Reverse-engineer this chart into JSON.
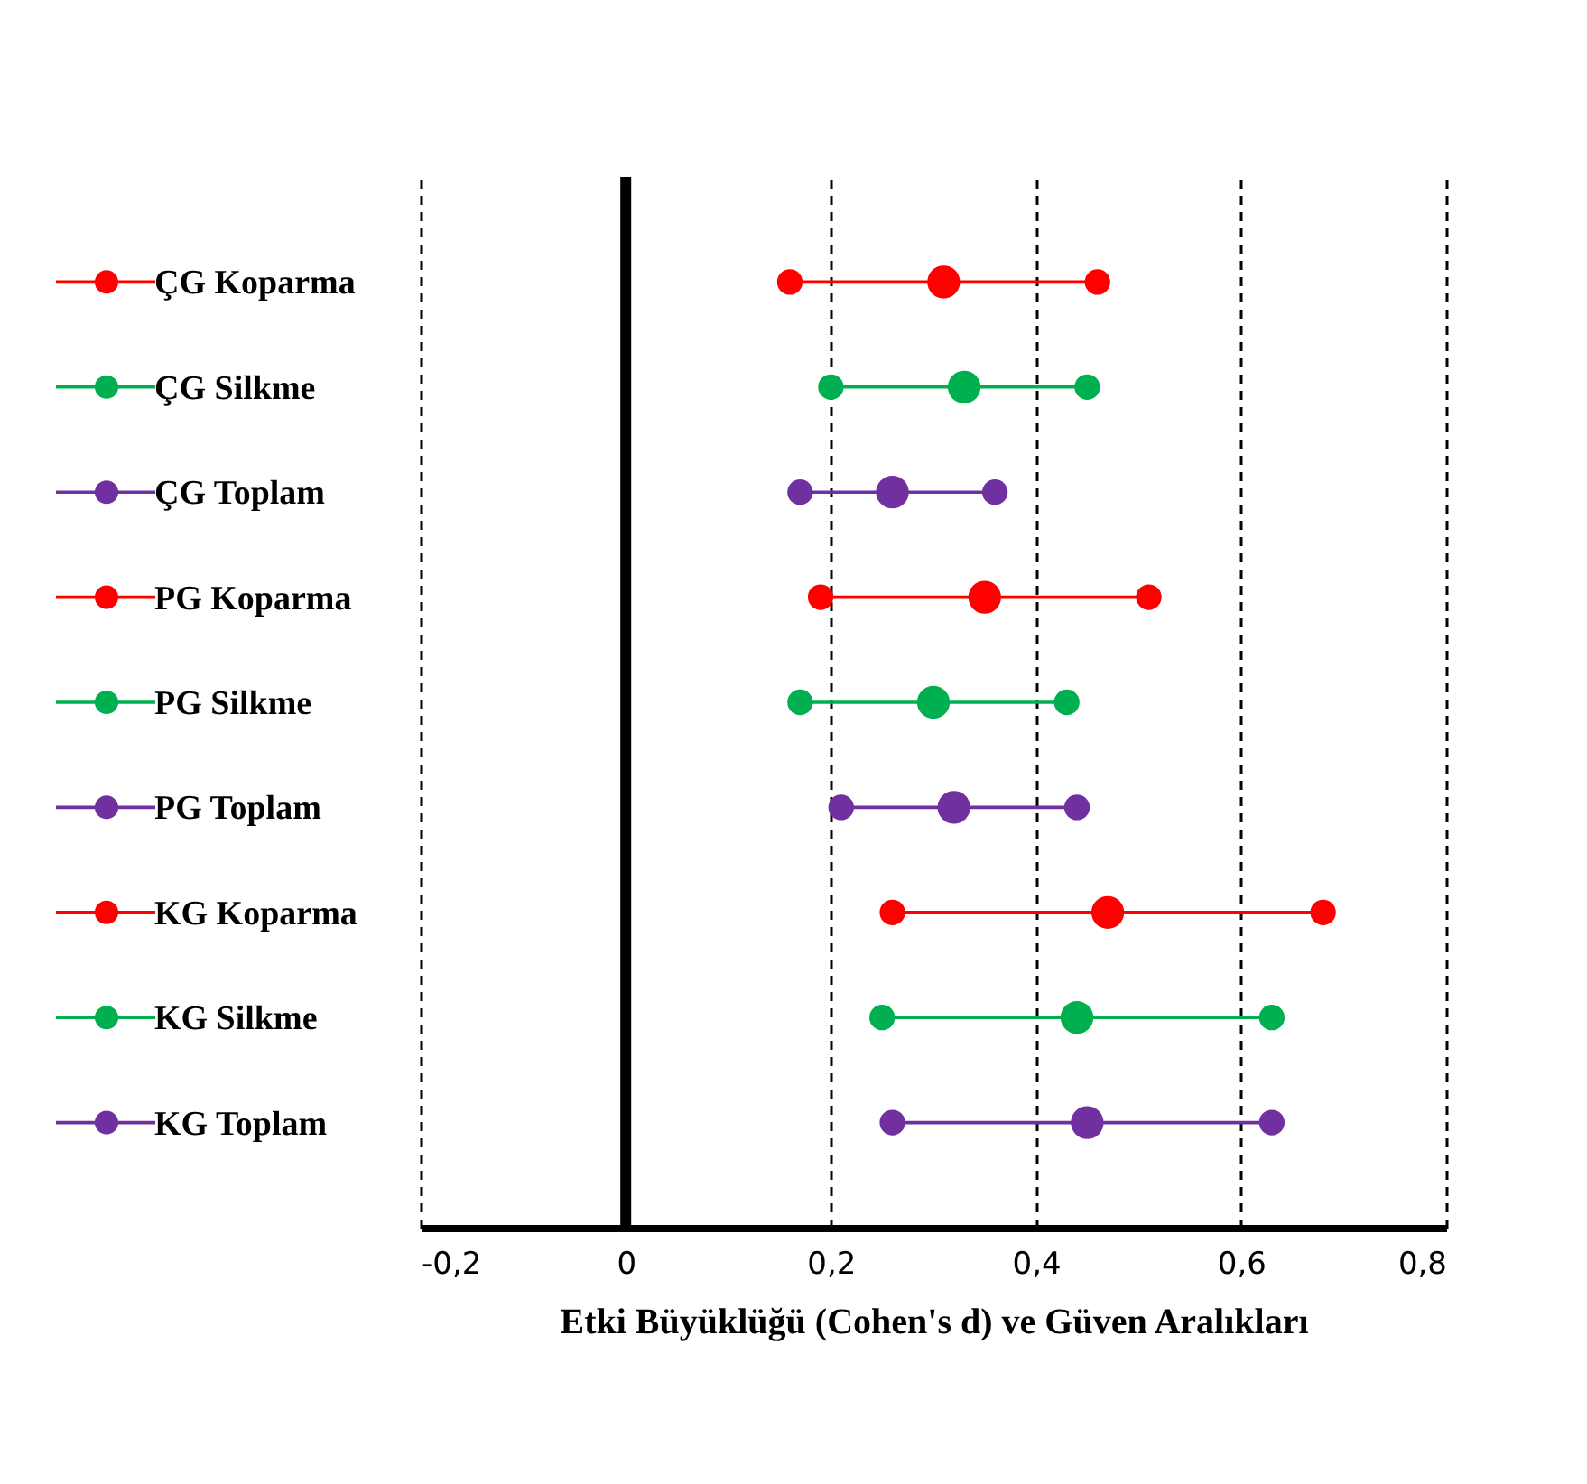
{
  "chart_data": {
    "type": "scatter",
    "orientation": "horizontal",
    "categories": [
      "ÇG Koparma",
      "ÇG Silkme",
      "ÇG Toplam",
      "PG Koparma",
      "PG Silkme",
      "PG Toplam",
      "KG Koparma",
      "KG Silkme",
      "KG Toplam"
    ],
    "series": [
      {
        "values": [
          0.31,
          0.33,
          0.26,
          0.35,
          0.3,
          0.32,
          0.47,
          0.44,
          0.45
        ],
        "colors": [
          "#ff0000",
          "#00b050",
          "#7030a0",
          "#ff0000",
          "#00b050",
          "#7030a0",
          "#ff0000",
          "#00b050",
          "#7030a0"
        ]
      },
      {
        "values": [
          0.16,
          0.2,
          0.17,
          0.19,
          0.17,
          0.21,
          0.26,
          0.25,
          0.26
        ],
        "colors": [
          "#ff0000",
          "#00b050",
          "#7030a0",
          "#ff0000",
          "#00b050",
          "#7030a0",
          "#ff0000",
          "#00b050",
          "#7030a0"
        ]
      },
      {
        "values": [
          0.46,
          0.45,
          0.36,
          0.51,
          0.43,
          0.44,
          0.68,
          0.63,
          0.63
        ],
        "colors": [
          "#ff0000",
          "#00b050",
          "#7030a0",
          "#ff0000",
          "#00b050",
          "#7030a0",
          "#ff0000",
          "#00b050",
          "#7030a0"
        ]
      }
    ],
    "xlabel": "Etki Büyüklüğü (Cohen's d) ve Güven Aralıkları",
    "xlim": [
      -0.2,
      0.8
    ],
    "xticks": [
      {
        "value": -0.2,
        "label": "-0,2"
      },
      {
        "value": 0,
        "label": "0"
      },
      {
        "value": 0.2,
        "label": "0,2"
      },
      {
        "value": 0.4,
        "label": "0,4"
      },
      {
        "value": 0.6,
        "label": "0,6"
      },
      {
        "value": 0.8,
        "label": "0,8"
      }
    ],
    "grid": "x",
    "marker": "circle",
    "ref_lines": [
      {
        "axis": "x",
        "value": 0,
        "color": "#000000"
      }
    ]
  }
}
